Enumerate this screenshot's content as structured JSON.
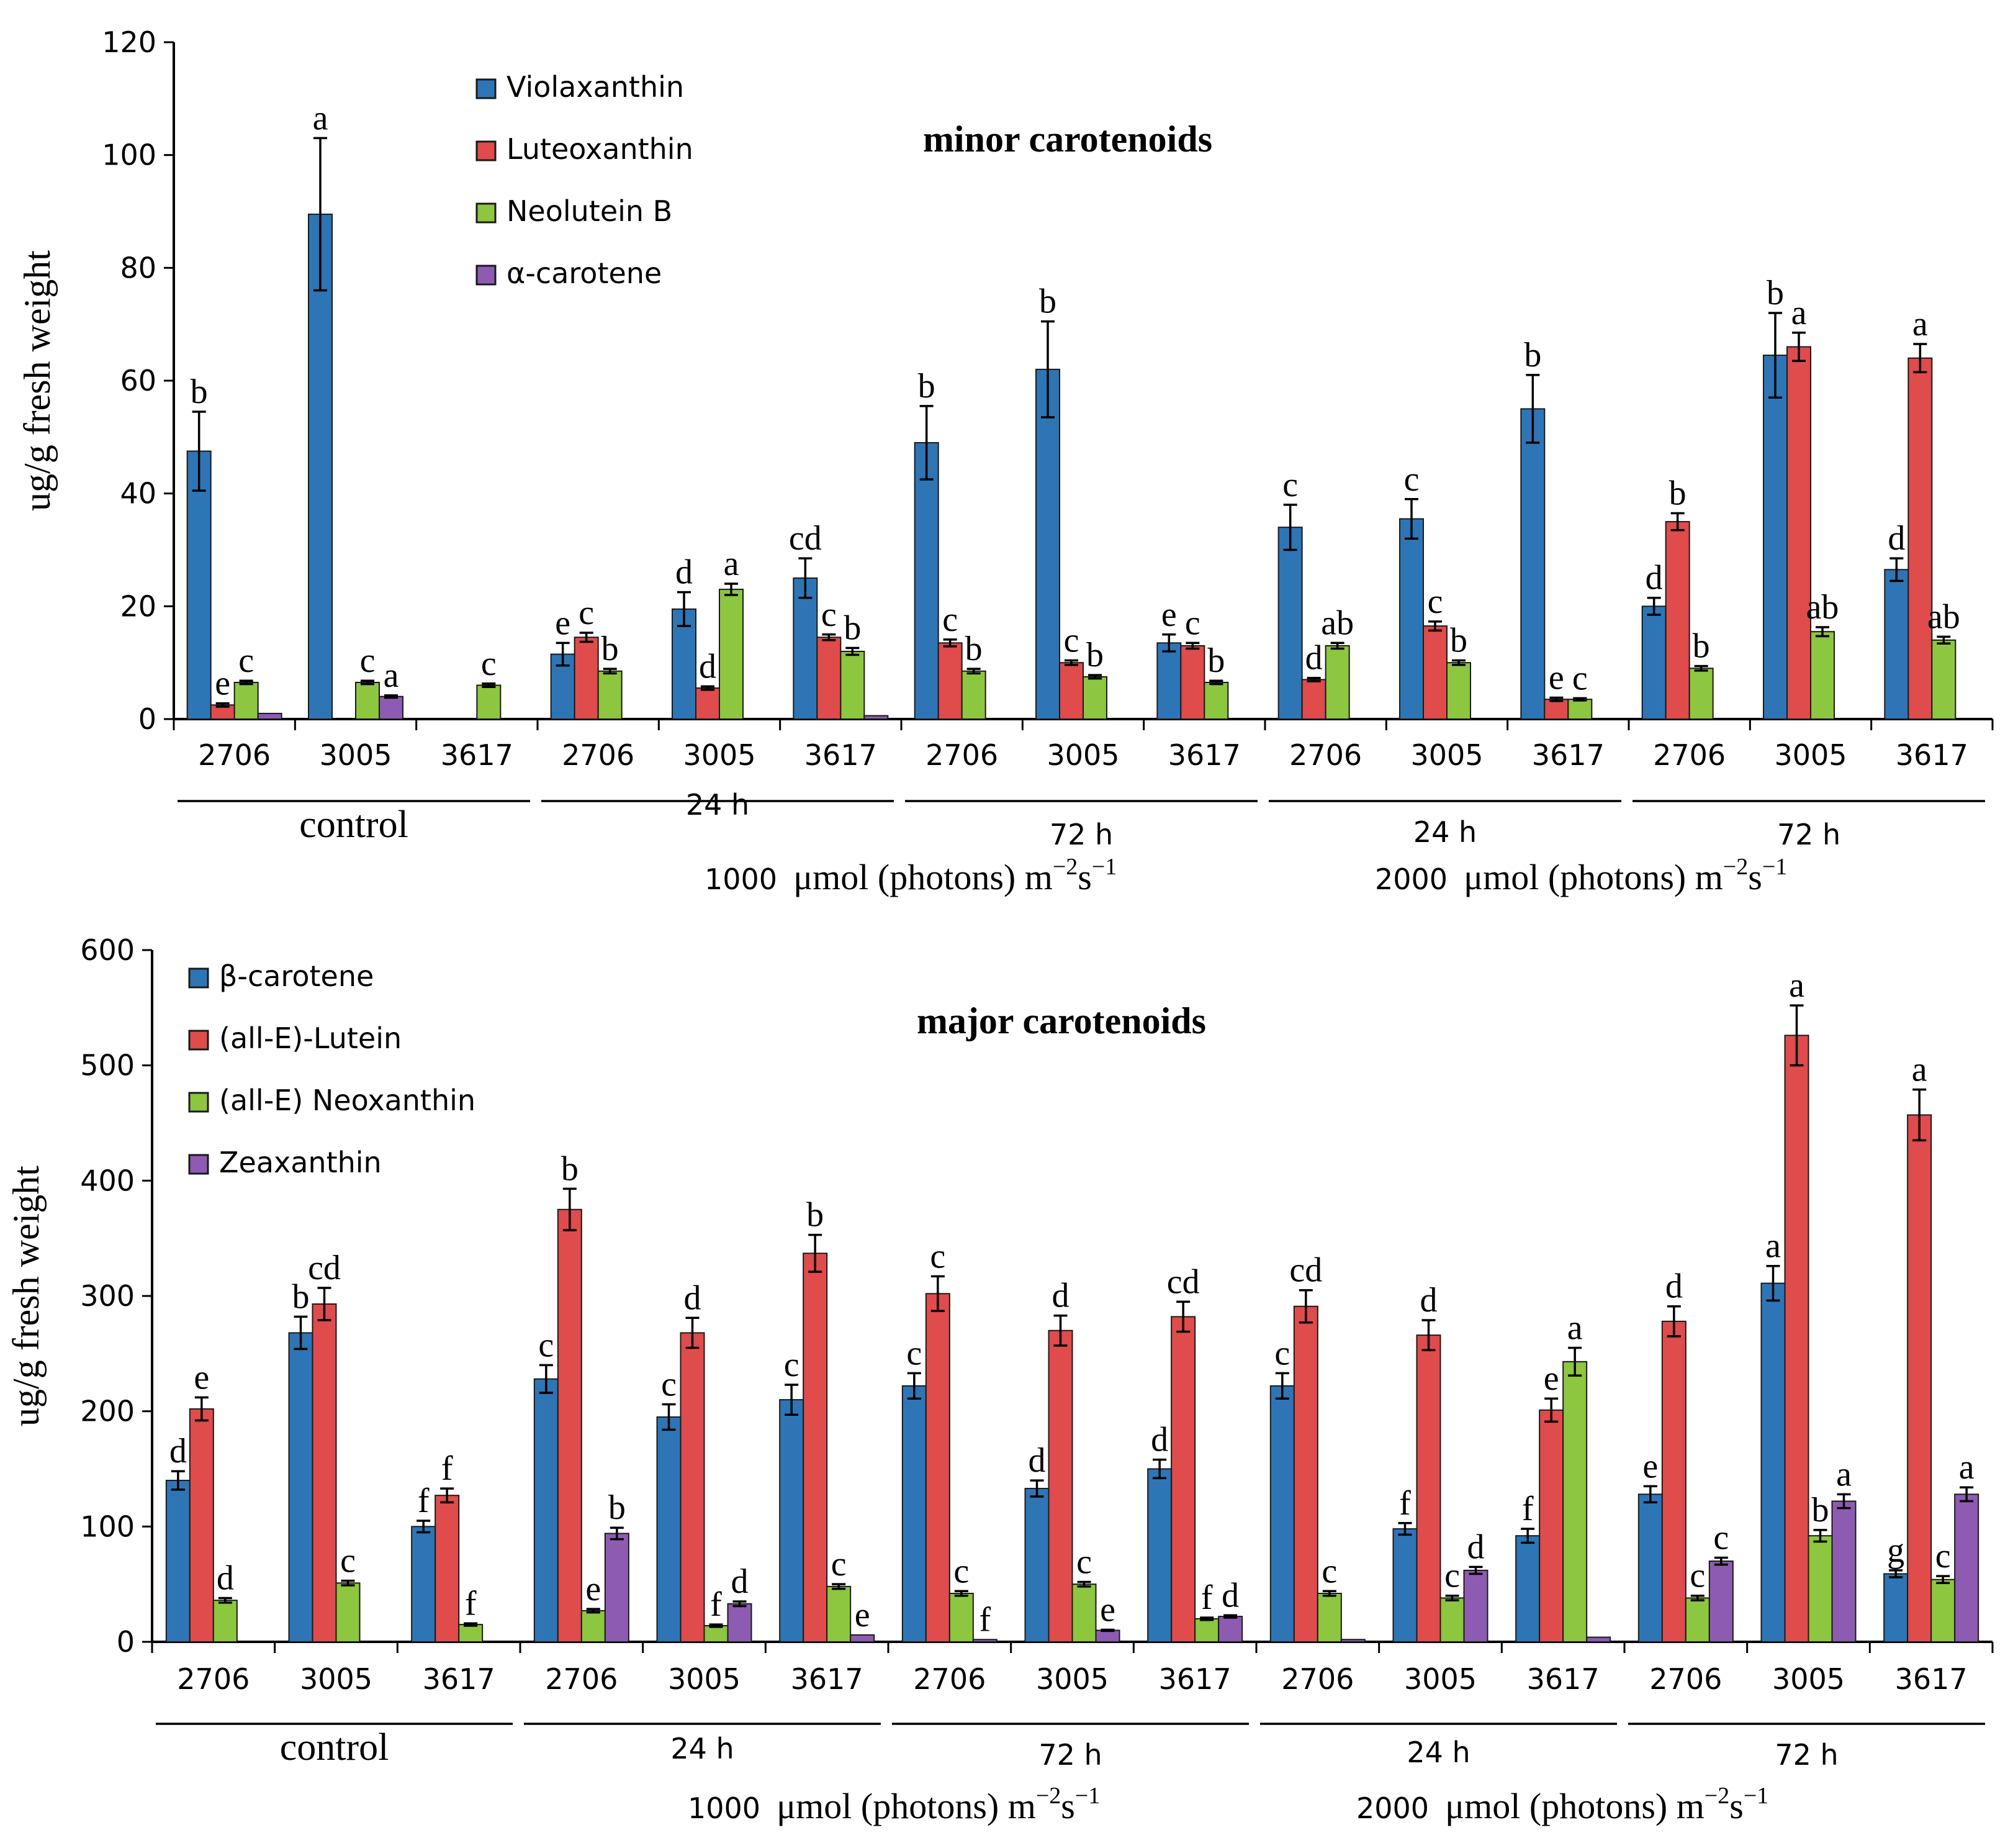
{
  "chart_data": [
    {
      "type": "bar",
      "title": "minor carotenoids",
      "ylabel": "ug/g fresh weight",
      "ylim": [
        0,
        120
      ],
      "yticks": [
        0,
        20,
        40,
        60,
        80,
        100,
        120
      ],
      "categories": [
        "2706",
        "3005",
        "3617",
        "2706",
        "3005",
        "3617",
        "2706",
        "3005",
        "3617",
        "2706",
        "3005",
        "3617",
        "2706",
        "3005",
        "3617"
      ],
      "series": [
        {
          "name": "Violaxanthin",
          "color": "#2e75b6",
          "values": [
            47.5,
            89.5,
            null,
            11.5,
            19.5,
            25,
            49,
            62,
            13.5,
            34,
            35.5,
            55,
            20,
            64.5,
            26.5
          ],
          "errors": [
            7,
            13.5,
            null,
            2,
            3,
            3.5,
            6.5,
            8.5,
            1.5,
            4,
            3.5,
            6,
            1.5,
            7.5,
            2
          ],
          "letters": [
            "b",
            "a",
            null,
            "e",
            "d",
            "cd",
            "b",
            "b",
            "e",
            "c",
            "c",
            "b",
            "d",
            "b",
            "d"
          ]
        },
        {
          "name": "Luteoxanthin",
          "color": "#e04b4b",
          "values": [
            2.5,
            null,
            null,
            14.5,
            5.5,
            14.5,
            13.5,
            10,
            13,
            7,
            16.5,
            3.5,
            35,
            66,
            64
          ],
          "errors": [
            0.3,
            null,
            null,
            0.8,
            0.3,
            0.5,
            0.6,
            0.4,
            0.5,
            0.3,
            0.8,
            0.3,
            1.5,
            2.5,
            2.5
          ],
          "letters": [
            "e",
            null,
            null,
            "c",
            "d",
            "c",
            "c",
            "c",
            "c",
            "d",
            "c",
            "e",
            "b",
            "a",
            "a"
          ]
        },
        {
          "name": "Neolutein B",
          "color": "#8dc63f",
          "values": [
            6.5,
            6.5,
            6,
            8.5,
            23,
            12,
            8.5,
            7.5,
            6.5,
            13,
            10,
            3.5,
            9,
            15.5,
            14
          ],
          "errors": [
            0.3,
            0.3,
            0.3,
            0.4,
            1,
            0.6,
            0.4,
            0.3,
            0.3,
            0.5,
            0.4,
            0.2,
            0.4,
            0.8,
            0.6
          ],
          "letters": [
            "c",
            "c",
            "c",
            "b",
            "a",
            "b",
            "b",
            "b",
            "b",
            "ab",
            "b",
            "c",
            "b",
            "ab",
            "ab"
          ]
        },
        {
          "name": "α-carotene",
          "color": "#8e5bb3",
          "values": [
            1,
            4,
            null,
            null,
            null,
            0.6,
            null,
            null,
            null,
            null,
            null,
            null,
            null,
            null,
            null
          ],
          "errors": [
            0,
            0.2,
            null,
            null,
            null,
            0,
            null,
            null,
            null,
            null,
            null,
            null,
            null,
            null,
            null
          ],
          "letters": [
            null,
            "a",
            null,
            null,
            null,
            null,
            null,
            null,
            null,
            null,
            null,
            null,
            null,
            null,
            null
          ]
        }
      ],
      "groups": [
        {
          "label": "control",
          "span": [
            0,
            2
          ],
          "underline": true
        },
        {
          "label": "24 h",
          "span": [
            3,
            5
          ],
          "underline": true
        },
        {
          "label": "72 h",
          "span": [
            6,
            8
          ],
          "underline": true
        },
        {
          "label": "24 h",
          "span": [
            9,
            11
          ],
          "underline": true
        },
        {
          "label": "72 h",
          "span": [
            12,
            14
          ],
          "underline": true
        }
      ],
      "conditions": [
        {
          "number": "1000",
          "unit": "μmol (photons) m",
          "sup1": "−2",
          "mid": "s",
          "sup2": "−1"
        },
        {
          "number": "2000",
          "unit": "μmol (photons) m",
          "sup1": "−2",
          "mid": "s",
          "sup2": "−1"
        }
      ]
    },
    {
      "type": "bar",
      "title": "major carotenoids",
      "ylabel": "ug/g fresh weight",
      "ylim": [
        0,
        600
      ],
      "yticks": [
        0,
        100,
        200,
        300,
        400,
        500,
        600
      ],
      "categories": [
        "2706",
        "3005",
        "3617",
        "2706",
        "3005",
        "3617",
        "2706",
        "3005",
        "3617",
        "2706",
        "3005",
        "3617",
        "2706",
        "3005",
        "3617"
      ],
      "series": [
        {
          "name": "β-carotene",
          "color": "#2e75b6",
          "values": [
            140,
            268,
            100,
            228,
            195,
            210,
            222,
            133,
            150,
            222,
            98,
            92,
            128,
            311,
            59
          ],
          "errors": [
            8,
            14,
            5,
            12,
            11,
            13,
            11,
            7,
            8,
            11,
            5,
            6,
            7,
            15,
            3
          ],
          "letters": [
            "d",
            "b",
            "f",
            "c",
            "c",
            "c",
            "c",
            "d",
            "d",
            "c",
            "f",
            "f",
            "e",
            "a",
            "g"
          ]
        },
        {
          "name": "(all-E)-Lutein",
          "color": "#e04b4b",
          "values": [
            202,
            293,
            127,
            375,
            268,
            337,
            302,
            270,
            282,
            291,
            266,
            201,
            278,
            526,
            457
          ],
          "errors": [
            10,
            14,
            6,
            18,
            13,
            16,
            15,
            13,
            13,
            14,
            13,
            10,
            13,
            26,
            22
          ],
          "letters": [
            "e",
            "cd",
            "f",
            "b",
            "d",
            "b",
            "c",
            "d",
            "cd",
            "cd",
            "d",
            "e",
            "d",
            "a",
            "a"
          ]
        },
        {
          "name": "(all-E) Neoxanthin",
          "color": "#8dc63f",
          "values": [
            36,
            51,
            15,
            27,
            14,
            48,
            42,
            50,
            20,
            42,
            38,
            243,
            38,
            92,
            54
          ],
          "errors": [
            2,
            2,
            1,
            1.5,
            1,
            2,
            2,
            2,
            1,
            2,
            2,
            12,
            2,
            5,
            3
          ],
          "letters": [
            "d",
            "c",
            "f",
            "e",
            "f",
            "c",
            "c",
            "c",
            "f",
            "c",
            "c",
            "a",
            "c",
            "b",
            "c"
          ]
        },
        {
          "name": "Zeaxanthin",
          "color": "#8e5bb3",
          "values": [
            null,
            null,
            null,
            94,
            33,
            6,
            2,
            10,
            22,
            2,
            62,
            4,
            70,
            122,
            128
          ],
          "errors": [
            null,
            null,
            null,
            5,
            2,
            0,
            0,
            0.5,
            1,
            0,
            3,
            0,
            3,
            6,
            6
          ],
          "letters": [
            null,
            null,
            null,
            "b",
            "d",
            "e",
            "f",
            "e",
            "d",
            null,
            "d",
            null,
            "c",
            "a",
            "a"
          ]
        }
      ],
      "groups": [
        {
          "label": "control",
          "span": [
            0,
            2
          ],
          "underline": true
        },
        {
          "label": "24 h",
          "span": [
            3,
            5
          ],
          "underline": true
        },
        {
          "label": "72 h",
          "span": [
            6,
            8
          ],
          "underline": true
        },
        {
          "label": "24 h",
          "span": [
            9,
            11
          ],
          "underline": true
        },
        {
          "label": "72 h",
          "span": [
            12,
            14
          ],
          "underline": true
        }
      ],
      "conditions": [
        {
          "number": "1000",
          "unit": "μmol (photons) m",
          "sup1": "−2",
          "mid": "s",
          "sup2": "−1"
        },
        {
          "number": "2000",
          "unit": "μmol (photons) m",
          "sup1": "−2",
          "mid": "s",
          "sup2": "−1"
        }
      ]
    }
  ]
}
